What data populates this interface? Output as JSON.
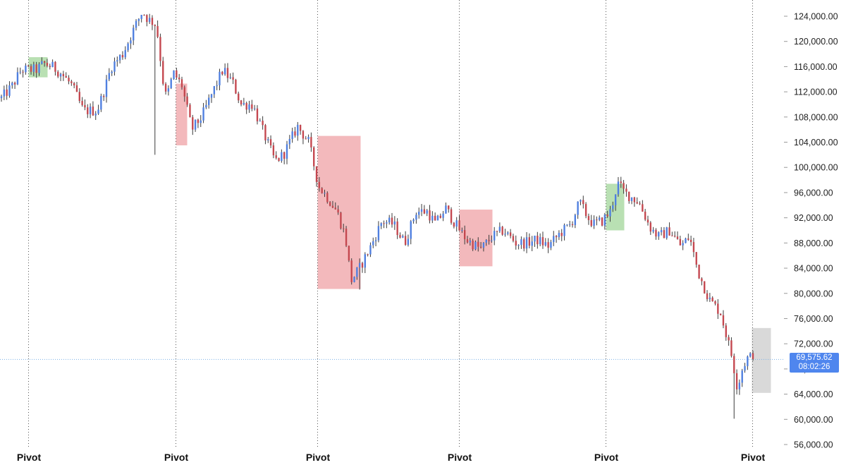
{
  "colors": {
    "background": "#ffffff",
    "up": "#4f7fe0",
    "down": "#c4474f",
    "wick": "#3a3a3a",
    "zone_green": "#a8d8a0",
    "zone_red": "#f0a7ab",
    "zone_gray": "#cccccc",
    "crosshair": "#7ab0e6",
    "pivot_line": "#555555",
    "price_label_bg": "#4f86ee"
  },
  "chart_data": {
    "type": "candlestick",
    "title": "",
    "xlabel": "",
    "ylabel": "",
    "ylim": [
      55000,
      128000
    ],
    "yticks": [
      124000,
      120000,
      116000,
      112000,
      108000,
      104000,
      100000,
      96000,
      92000,
      88000,
      84000,
      80000,
      76000,
      72000,
      68000,
      64000,
      60000,
      56000
    ],
    "ytick_labels": [
      "124,000.00",
      "120,000.00",
      "116,000.00",
      "112,000.00",
      "108,000.00",
      "104,000.00",
      "100,000.00",
      "96,000.00",
      "92,000.00",
      "88,000.00",
      "84,000.00",
      "80,000.00",
      "76,000.00",
      "72,000.00",
      "68,000.00",
      "64,000.00",
      "60,000.00",
      "56,000.00"
    ],
    "grid": false,
    "candle_count": 280,
    "path": [
      [
        0,
        111000
      ],
      [
        8,
        113000
      ],
      [
        14,
        115500
      ],
      [
        25,
        115500
      ],
      [
        30,
        116500
      ],
      [
        36,
        116000
      ],
      [
        42,
        115000
      ],
      [
        50,
        113000
      ],
      [
        58,
        109000
      ],
      [
        68,
        109000
      ],
      [
        74,
        113000
      ],
      [
        78,
        116000
      ],
      [
        86,
        118000
      ],
      [
        94,
        122000
      ],
      [
        100,
        124800
      ],
      [
        104,
        123500
      ],
      [
        108,
        123000
      ],
      [
        110,
        122500
      ],
      [
        115,
        113000
      ],
      [
        117,
        111000
      ],
      [
        122,
        115000
      ],
      [
        128,
        113000
      ],
      [
        135,
        106000
      ],
      [
        142,
        108000
      ],
      [
        150,
        112000
      ],
      [
        157,
        115500
      ],
      [
        164,
        113500
      ],
      [
        170,
        110000
      ],
      [
        178,
        110000
      ],
      [
        185,
        106000
      ],
      [
        194,
        101000
      ],
      [
        200,
        102000
      ],
      [
        210,
        106500
      ],
      [
        218,
        104000
      ],
      [
        225,
        97000
      ],
      [
        232,
        95000
      ],
      [
        238,
        93000
      ],
      [
        244,
        89000
      ],
      [
        248,
        82000
      ],
      [
        254,
        84000
      ],
      [
        262,
        87500
      ],
      [
        270,
        91500
      ],
      [
        278,
        91000
      ],
      [
        286,
        88000
      ],
      [
        294,
        93000
      ],
      [
        302,
        93000
      ],
      [
        308,
        91000
      ],
      [
        315,
        93500
      ],
      [
        322,
        91000
      ],
      [
        330,
        88500
      ],
      [
        340,
        87000
      ],
      [
        348,
        89000
      ],
      [
        356,
        90000
      ],
      [
        365,
        88000
      ],
      [
        372,
        88000
      ],
      [
        380,
        88500
      ],
      [
        388,
        87500
      ],
      [
        396,
        89500
      ],
      [
        404,
        91000
      ],
      [
        410,
        94500
      ],
      [
        416,
        92000
      ],
      [
        420,
        91000
      ],
      [
        426,
        91500
      ],
      [
        432,
        93000
      ],
      [
        437,
        97500
      ],
      [
        442,
        96000
      ],
      [
        452,
        94500
      ],
      [
        460,
        90500
      ],
      [
        466,
        89000
      ],
      [
        474,
        90000
      ],
      [
        482,
        87500
      ],
      [
        488,
        89000
      ],
      [
        494,
        83500
      ],
      [
        502,
        79000
      ],
      [
        510,
        77000
      ],
      [
        518,
        70000
      ],
      [
        522,
        65000
      ],
      [
        526,
        68500
      ],
      [
        530,
        70000
      ],
      [
        533,
        69575
      ]
    ],
    "zones": [
      {
        "color": "green",
        "x1": 40.5,
        "x2": 67.5,
        "y1": 117500,
        "y2": 114300
      },
      {
        "color": "red",
        "x1": 249.5,
        "x2": 265.5,
        "y1": 113300,
        "y2": 103500
      },
      {
        "color": "red",
        "x1": 450.5,
        "x2": 511.5,
        "y1": 105000,
        "y2": 80700
      },
      {
        "color": "red",
        "x1": 651.5,
        "x2": 698.5,
        "y1": 93300,
        "y2": 84300
      },
      {
        "color": "green",
        "x1": 859.5,
        "x2": 885.5,
        "y1": 97400,
        "y2": 90000
      },
      {
        "color": "gray",
        "x1": 1066.5,
        "x2": 1093.5,
        "y1": 74500,
        "y2": 64200
      }
    ],
    "pivots_label": "Pivot",
    "pivots": [
      "Pivot",
      "Pivot",
      "Pivot",
      "Pivot",
      "Pivot",
      "Pivot"
    ],
    "last_price": 69575.62,
    "last_price_label": "69,575.62",
    "countdown": "08:02:26"
  }
}
